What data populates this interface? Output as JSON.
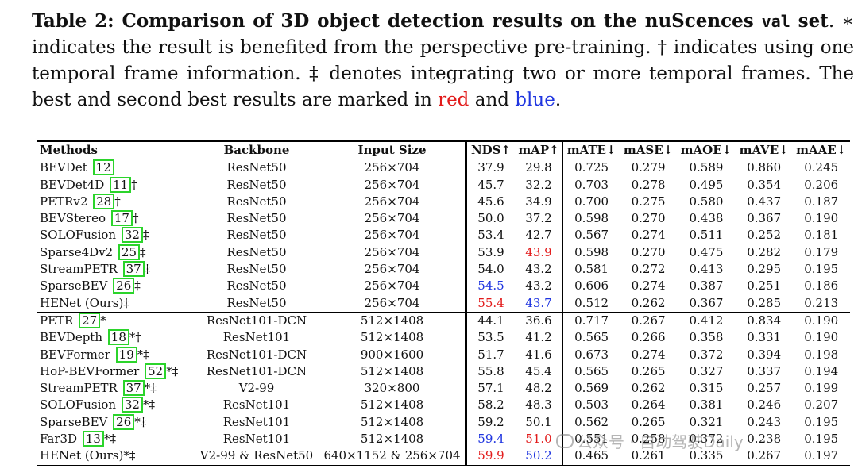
{
  "caption": {
    "label": "Table 2: Comparison of 3D object detection results on the nuScences",
    "val": "val",
    "set": "set",
    "text_part1": ". ∗ indicates the result is benefited from the perspective pre-training. † indicates using one temporal frame information. ‡ denotes integrating two or more temporal frames. The best and second best results are marked in ",
    "red_word": "red",
    "and_word": " and ",
    "blue_word": "blue",
    "period": "."
  },
  "colors": {
    "best": "#e21b1b",
    "second": "#1f35e0",
    "ref_box": "#2bd42b"
  },
  "headers": [
    "Methods",
    "Backbone",
    "Input Size",
    "NDS↑",
    "mAP↑",
    "mATE↓",
    "mASE↓",
    "mAOE↓",
    "mAVE↓",
    "mAAE↓"
  ],
  "rows": [
    {
      "name": "BEVDet",
      "ref": "12",
      "mark": "",
      "backbone": "ResNet50",
      "input": "256×704",
      "nds": "37.9",
      "map": "29.8",
      "mate": "0.725",
      "mase": "0.279",
      "maoe": "0.589",
      "mave": "0.860",
      "maae": "0.245"
    },
    {
      "name": "BEVDet4D",
      "ref": "11",
      "mark": "†",
      "backbone": "ResNet50",
      "input": "256×704",
      "nds": "45.7",
      "map": "32.2",
      "mate": "0.703",
      "mase": "0.278",
      "maoe": "0.495",
      "mave": "0.354",
      "maae": "0.206"
    },
    {
      "name": "PETRv2",
      "ref": "28",
      "mark": "†",
      "backbone": "ResNet50",
      "input": "256×704",
      "nds": "45.6",
      "map": "34.9",
      "mate": "0.700",
      "mase": "0.275",
      "maoe": "0.580",
      "mave": "0.437",
      "maae": "0.187"
    },
    {
      "name": "BEVStereo",
      "ref": "17",
      "mark": "†",
      "backbone": "ResNet50",
      "input": "256×704",
      "nds": "50.0",
      "map": "37.2",
      "mate": "0.598",
      "mase": "0.270",
      "maoe": "0.438",
      "mave": "0.367",
      "maae": "0.190"
    },
    {
      "name": "SOLOFusion",
      "ref": "32",
      "mark": "‡",
      "backbone": "ResNet50",
      "input": "256×704",
      "nds": "53.4",
      "map": "42.7",
      "mate": "0.567",
      "mase": "0.274",
      "maoe": "0.511",
      "mave": "0.252",
      "maae": "0.181"
    },
    {
      "name": "Sparse4Dv2",
      "ref": "25",
      "mark": "‡",
      "backbone": "ResNet50",
      "input": "256×704",
      "nds": "53.9",
      "map": "43.9",
      "map_color": "red",
      "mate": "0.598",
      "mase": "0.270",
      "maoe": "0.475",
      "mave": "0.282",
      "maae": "0.179"
    },
    {
      "name": "StreamPETR",
      "ref": "37",
      "mark": "‡",
      "backbone": "ResNet50",
      "input": "256×704",
      "nds": "54.0",
      "map": "43.2",
      "mate": "0.581",
      "mase": "0.272",
      "maoe": "0.413",
      "mave": "0.295",
      "maae": "0.195"
    },
    {
      "name": "SparseBEV",
      "ref": "26",
      "mark": "‡",
      "backbone": "ResNet50",
      "input": "256×704",
      "nds": "54.5",
      "nds_color": "blue",
      "map": "43.2",
      "mate": "0.606",
      "mase": "0.274",
      "maoe": "0.387",
      "mave": "0.251",
      "maae": "0.186"
    },
    {
      "name": "HENet (Ours)",
      "ref": "",
      "mark": "‡",
      "backbone": "ResNet50",
      "input": "256×704",
      "nds": "55.4",
      "nds_color": "red",
      "map": "43.7",
      "map_color": "blue",
      "mate": "0.512",
      "mase": "0.262",
      "maoe": "0.367",
      "mave": "0.285",
      "maae": "0.213"
    },
    {
      "name": "PETR",
      "ref": "27",
      "mark": "*",
      "group_start": true,
      "backbone": "ResNet101-DCN",
      "input": "512×1408",
      "nds": "44.1",
      "map": "36.6",
      "mate": "0.717",
      "mase": "0.267",
      "maoe": "0.412",
      "mave": "0.834",
      "maae": "0.190"
    },
    {
      "name": "BEVDepth",
      "ref": "18",
      "mark": "*†",
      "backbone": "ResNet101",
      "input": "512×1408",
      "nds": "53.5",
      "map": "41.2",
      "mate": "0.565",
      "mase": "0.266",
      "maoe": "0.358",
      "mave": "0.331",
      "maae": "0.190"
    },
    {
      "name": "BEVFormer",
      "ref": "19",
      "mark": "*‡",
      "backbone": "ResNet101-DCN",
      "input": "900×1600",
      "nds": "51.7",
      "map": "41.6",
      "mate": "0.673",
      "mase": "0.274",
      "maoe": "0.372",
      "mave": "0.394",
      "maae": "0.198"
    },
    {
      "name": "HoP-BEVFormer",
      "ref": "52",
      "mark": "*‡",
      "backbone": "ResNet101-DCN",
      "input": "512×1408",
      "nds": "55.8",
      "map": "45.4",
      "mate": "0.565",
      "mase": "0.265",
      "maoe": "0.327",
      "mave": "0.337",
      "maae": "0.194"
    },
    {
      "name": "StreamPETR",
      "ref": "37",
      "mark": "*‡",
      "backbone": "V2-99",
      "input": "320×800",
      "nds": "57.1",
      "map": "48.2",
      "mate": "0.569",
      "mase": "0.262",
      "maoe": "0.315",
      "mave": "0.257",
      "maae": "0.199"
    },
    {
      "name": "SOLOFusion",
      "ref": "32",
      "mark": "*‡",
      "backbone": "ResNet101",
      "input": "512×1408",
      "nds": "58.2",
      "map": "48.3",
      "mate": "0.503",
      "mase": "0.264",
      "maoe": "0.381",
      "mave": "0.246",
      "maae": "0.207"
    },
    {
      "name": "SparseBEV",
      "ref": "26",
      "mark": "*‡",
      "backbone": "ResNet101",
      "input": "512×1408",
      "nds": "59.2",
      "map": "50.1",
      "mate": "0.562",
      "mase": "0.265",
      "maoe": "0.321",
      "mave": "0.243",
      "maae": "0.195"
    },
    {
      "name": "Far3D",
      "ref": "13",
      "mark": "*‡",
      "backbone": "ResNet101",
      "input": "512×1408",
      "nds": "59.4",
      "nds_color": "blue",
      "map": "51.0",
      "map_color": "red",
      "mate": "0.551",
      "mase": "0.258",
      "maoe": "0.372",
      "mave": "0.238",
      "maae": "0.195"
    },
    {
      "name": "HENet (Ours)",
      "ref": "",
      "mark": "*‡",
      "backbone": "V2-99 & ResNet50",
      "input": "640×1152 & 256×704",
      "nds": "59.9",
      "nds_color": "red",
      "map": "50.2",
      "map_color": "blue",
      "mate": "0.465",
      "mase": "0.261",
      "maoe": "0.335",
      "mave": "0.267",
      "maae": "0.197"
    }
  ],
  "watermark": {
    "text": "公众号 · 自动驾驶Daily",
    "icon": "wechat-icon"
  }
}
